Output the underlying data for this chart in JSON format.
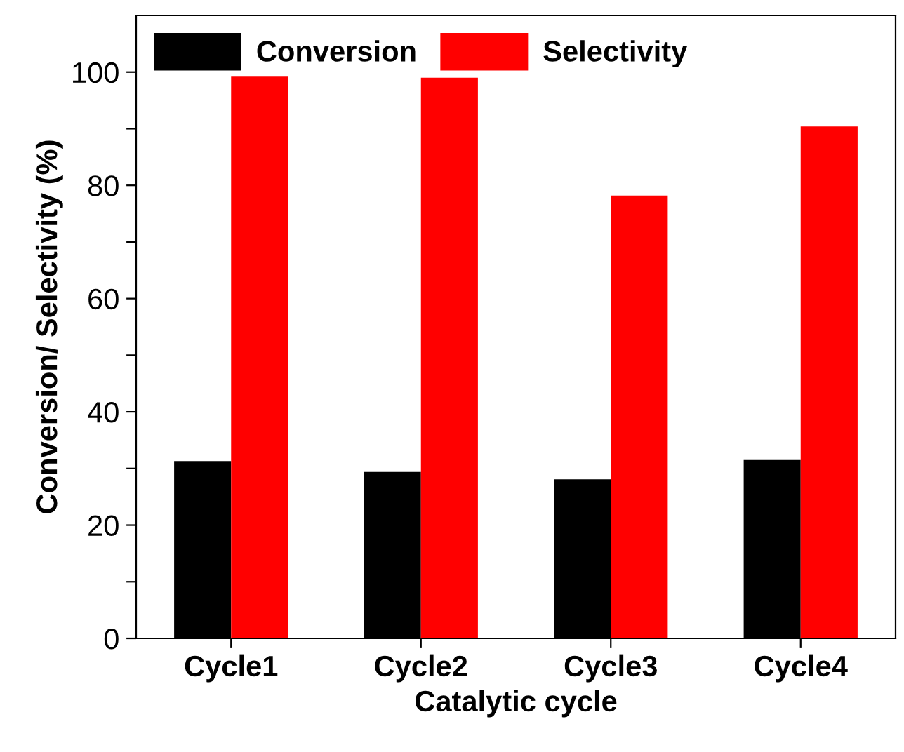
{
  "chart_data": {
    "type": "bar",
    "xlabel": "Catalytic cycle",
    "ylabel": "Conversion/ Selectivity (%)",
    "categories": [
      "Cycle1",
      "Cycle2",
      "Cycle3",
      "Cycle4"
    ],
    "series": [
      {
        "name": "Conversion",
        "color": "#000000",
        "values": [
          31.3,
          29.4,
          28.1,
          31.5
        ]
      },
      {
        "name": "Selectivity",
        "color": "#ff0000",
        "values": [
          99.2,
          99.0,
          78.2,
          90.4
        ]
      }
    ],
    "ylim": [
      0,
      110
    ],
    "yticks": [
      0,
      {
        "value": 10,
        "label": null
      },
      20,
      {
        "value": 30,
        "label": null
      },
      40,
      {
        "value": 50,
        "label": null
      },
      60,
      {
        "value": 70,
        "label": null
      },
      80,
      {
        "value": 90,
        "label": null
      },
      100
    ],
    "grid": false,
    "legend": "top left"
  }
}
